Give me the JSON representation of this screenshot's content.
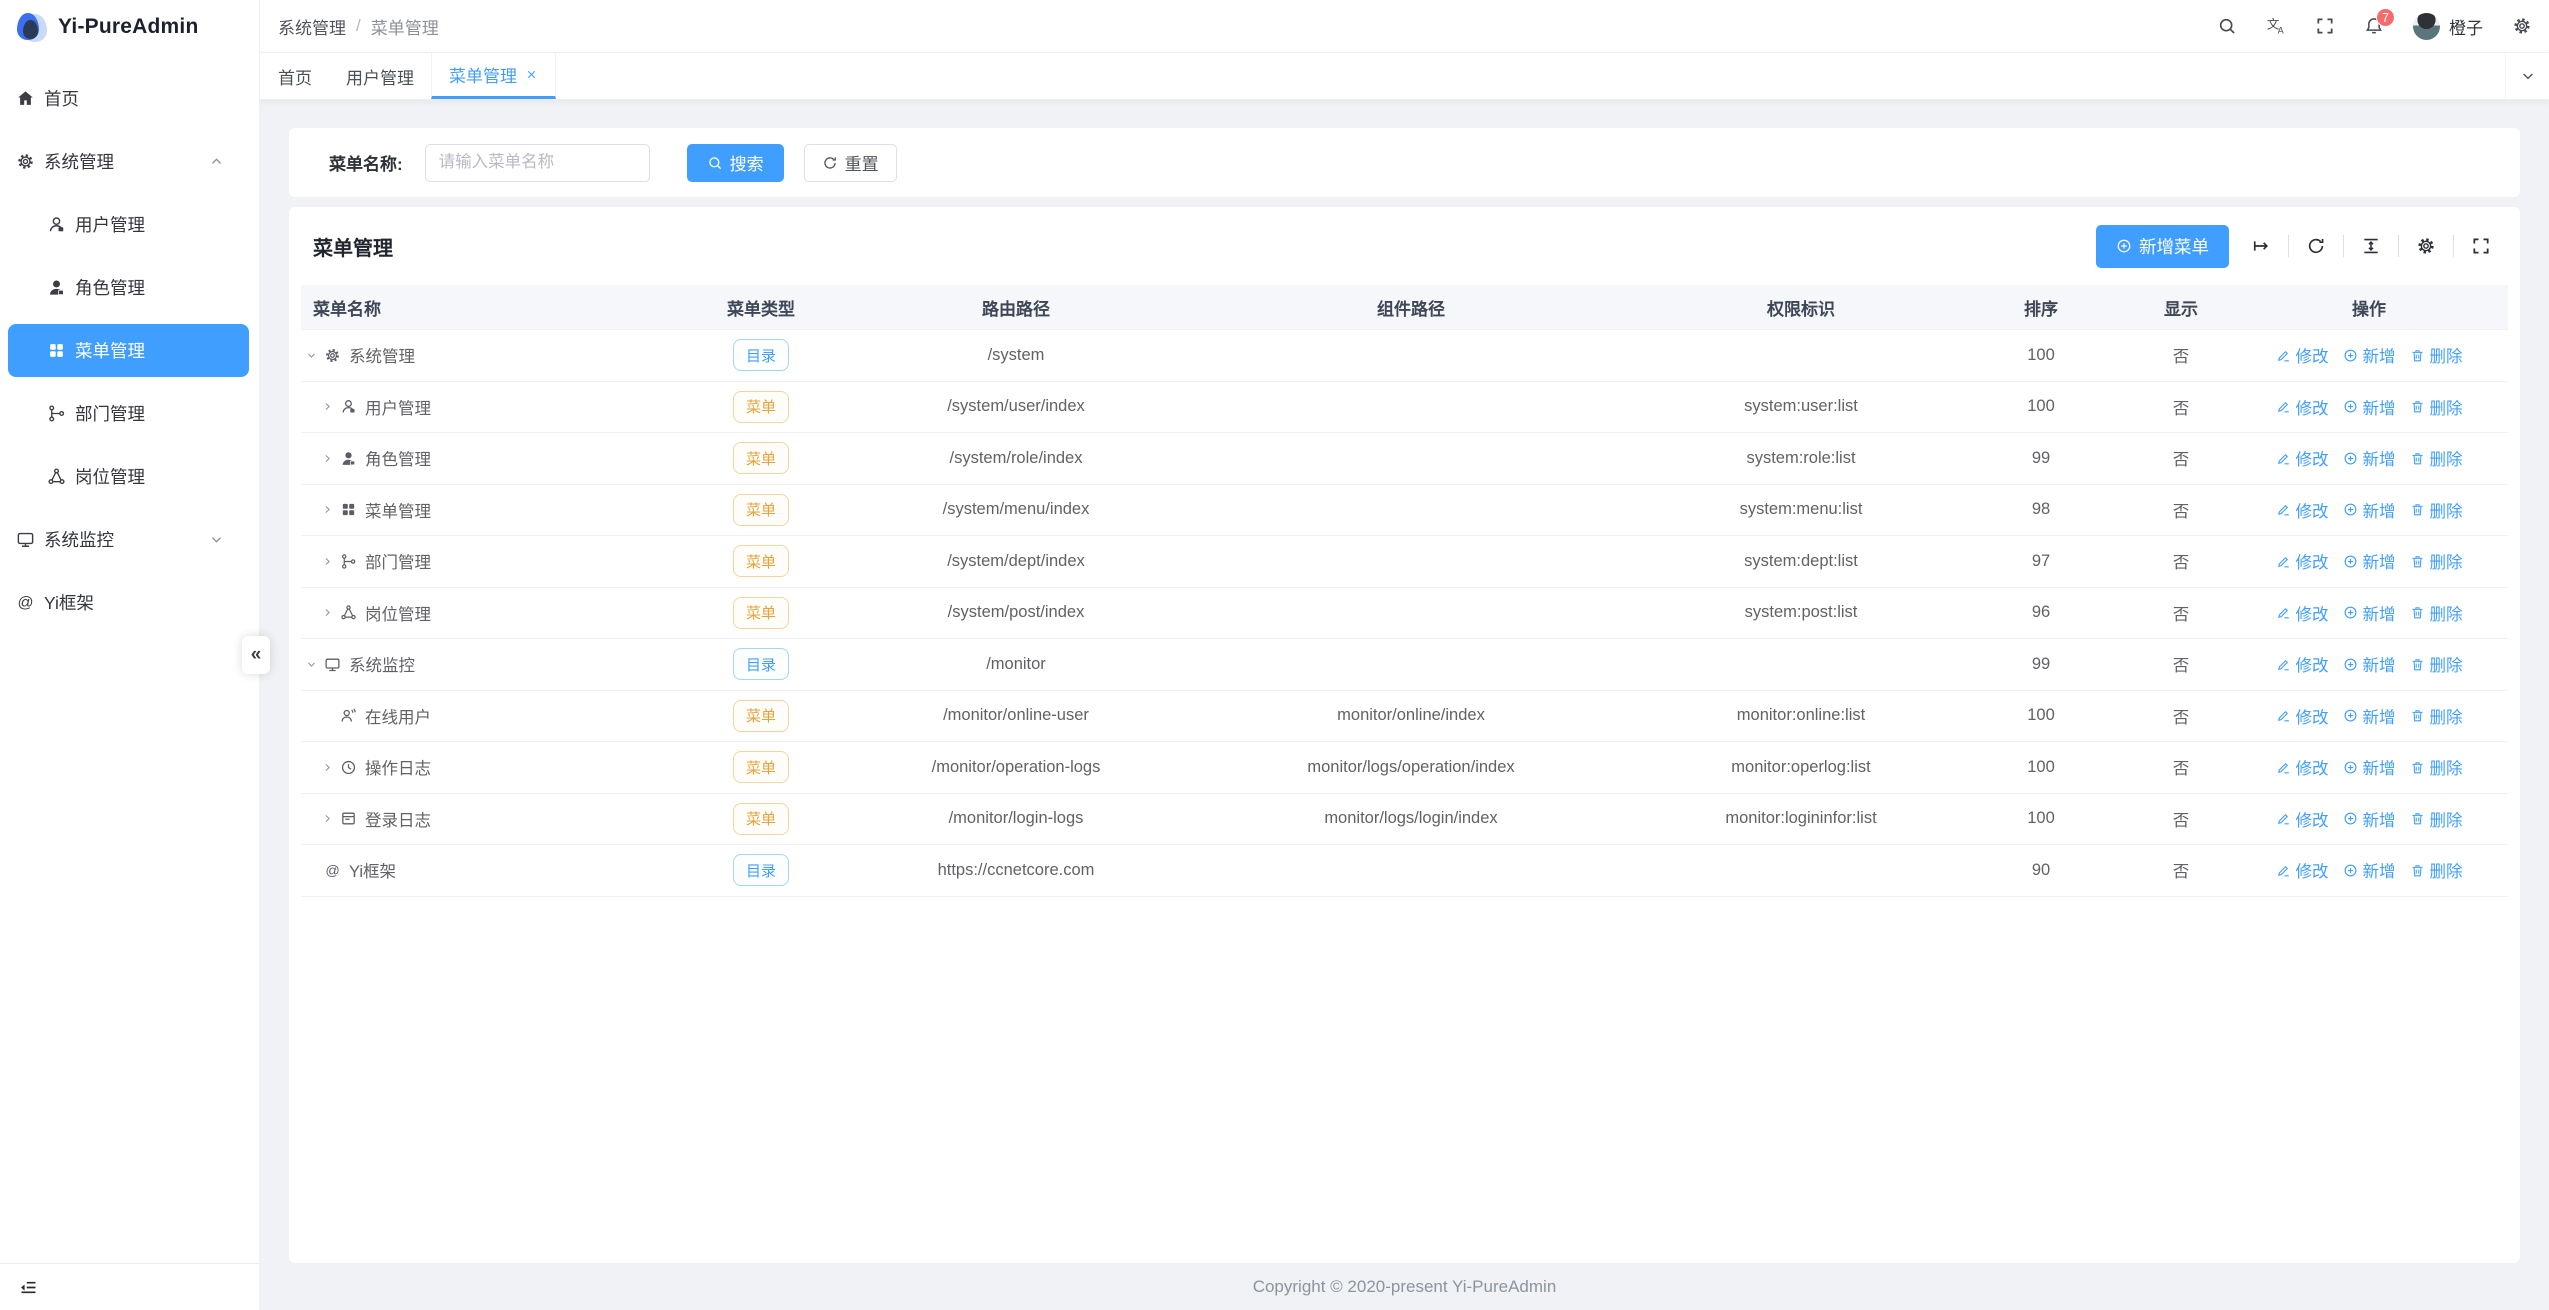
{
  "colors": {
    "primary": "#409eff",
    "sidebar_active_bg": "#409eff",
    "tag_dir": "#409eff",
    "tag_menu": "#e6a23c",
    "badge_red": "#f56c6c",
    "content_bg": "#f0f2f5"
  },
  "sidebar": {
    "logo_title": "Yi-PureAdmin",
    "items": [
      {
        "icon": "home",
        "label": "首页"
      },
      {
        "icon": "gear",
        "label": "系统管理",
        "chevron": "chevron-up"
      },
      {
        "icon": "user",
        "label": "用户管理"
      },
      {
        "icon": "user-filled",
        "label": "角色管理"
      },
      {
        "icon": "grid",
        "label": "菜单管理",
        "active": true
      },
      {
        "icon": "branch",
        "label": "部门管理"
      },
      {
        "icon": "hub",
        "label": "岗位管理"
      },
      {
        "icon": "monitor",
        "label": "系统监控",
        "chevron": "chevron-down"
      },
      {
        "icon": "at",
        "label": "Yi框架"
      }
    ],
    "collapse_hint": "«"
  },
  "navbar": {
    "breadcrumb": [
      "系统管理",
      "菜单管理"
    ],
    "separator": "/",
    "badge_count": "7",
    "username": "橙子"
  },
  "tabs": [
    {
      "label": "首页"
    },
    {
      "label": "用户管理"
    },
    {
      "label": "菜单管理",
      "active": true,
      "closable": true
    }
  ],
  "search": {
    "label": "菜单名称:",
    "placeholder": "请输入菜单名称",
    "search_btn": "搜索",
    "reset_btn": "重置"
  },
  "card": {
    "title": "菜单管理",
    "add_btn": "新增菜单"
  },
  "table": {
    "headers": [
      "菜单名称",
      "菜单类型",
      "路由路径",
      "组件路径",
      "权限标识",
      "排序",
      "显示",
      "操作"
    ],
    "action_labels": {
      "edit": "修改",
      "add": "新增",
      "del": "删除"
    },
    "rows": [
      {
        "arrow": "caret-down",
        "icon": "gear",
        "name": "系统管理",
        "type": "目录",
        "kind": "dir",
        "route": "/system",
        "component": "",
        "permission": "",
        "sort": "100",
        "show": "否"
      },
      {
        "arrow": "caret-right",
        "icon": "user",
        "name": "用户管理",
        "type": "菜单",
        "kind": "menu",
        "route": "/system/user/index",
        "component": "",
        "permission": "system:user:list",
        "sort": "100",
        "show": "否"
      },
      {
        "arrow": "caret-right",
        "icon": "user-filled",
        "name": "角色管理",
        "type": "菜单",
        "kind": "menu",
        "route": "/system/role/index",
        "component": "",
        "permission": "system:role:list",
        "sort": "99",
        "show": "否"
      },
      {
        "arrow": "caret-right",
        "icon": "grid",
        "name": "菜单管理",
        "type": "菜单",
        "kind": "menu",
        "route": "/system/menu/index",
        "component": "",
        "permission": "system:menu:list",
        "sort": "98",
        "show": "否"
      },
      {
        "arrow": "caret-right",
        "icon": "branch",
        "name": "部门管理",
        "type": "菜单",
        "kind": "menu",
        "route": "/system/dept/index",
        "component": "",
        "permission": "system:dept:list",
        "sort": "97",
        "show": "否"
      },
      {
        "arrow": "caret-right",
        "icon": "hub",
        "name": "岗位管理",
        "type": "菜单",
        "kind": "menu",
        "route": "/system/post/index",
        "component": "",
        "permission": "system:post:list",
        "sort": "96",
        "show": "否"
      },
      {
        "arrow": "caret-down",
        "icon": "monitor",
        "name": "系统监控",
        "type": "目录",
        "kind": "dir",
        "route": "/monitor",
        "component": "",
        "permission": "",
        "sort": "99",
        "show": "否"
      },
      {
        "arrow": "",
        "icon": "online-user",
        "name": "在线用户",
        "type": "菜单",
        "kind": "menu",
        "route": "/monitor/online-user",
        "component": "monitor/online/index",
        "permission": "monitor:online:list",
        "sort": "100",
        "show": "否"
      },
      {
        "arrow": "caret-right",
        "icon": "clock",
        "name": "操作日志",
        "type": "菜单",
        "kind": "menu",
        "route": "/monitor/operation-logs",
        "component": "monitor/logs/operation/index",
        "permission": "monitor:operlog:list",
        "sort": "100",
        "show": "否"
      },
      {
        "arrow": "caret-right",
        "icon": "log",
        "name": "登录日志",
        "type": "菜单",
        "kind": "menu",
        "route": "/monitor/login-logs",
        "component": "monitor/logs/login/index",
        "permission": "monitor:logininfor:list",
        "sort": "100",
        "show": "否"
      },
      {
        "arrow": "",
        "icon": "at",
        "name": "Yi框架",
        "type": "目录",
        "kind": "dir",
        "route": "https://ccnetcore.com",
        "component": "",
        "permission": "",
        "sort": "90",
        "show": "否"
      }
    ]
  },
  "footer": {
    "copyright": "Copyright © 2020-present Yi-PureAdmin"
  }
}
